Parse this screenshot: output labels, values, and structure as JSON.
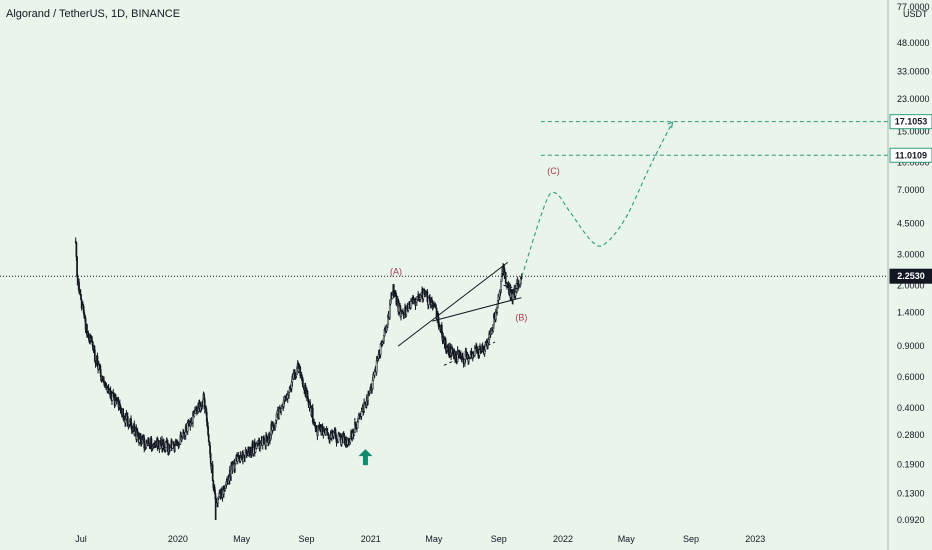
{
  "header": {
    "title": "Algorand / TetherUS, 1D, BINANCE"
  },
  "colors": {
    "background": "#e9f4ea",
    "candle": "#131722",
    "projection": "#2e9c7c",
    "level_line": "#2e9c7c",
    "wave_label": "#a43a4f",
    "arrow": "#138a6f",
    "price_tag": "#131722",
    "level_tag": "#ffffff"
  },
  "chart_data": {
    "type": "candlestick",
    "yscale": "log",
    "ylim": [
      0.092,
      77.0
    ],
    "y_unit": "USDT",
    "x_tick_labels": [
      "Jul",
      "2020",
      "May",
      "Sep",
      "2021",
      "May",
      "Sep",
      "2022",
      "May",
      "Sep",
      "2023"
    ],
    "y_tick_labels": [
      "77.0000",
      "48.0000",
      "33.0000",
      "23.0000",
      "15.0000",
      "10.0000",
      "7.0000",
      "4.5000",
      "3.0000",
      "2.0000",
      "1.4000",
      "0.9000",
      "0.6000",
      "0.4000",
      "0.2800",
      "0.1900",
      "0.1300",
      "0.0920"
    ],
    "y_tick_values": [
      77.0,
      48.0,
      33.0,
      23.0,
      15.0,
      10.0,
      7.0,
      4.5,
      3.0,
      2.0,
      1.4,
      0.9,
      0.6,
      0.4,
      0.28,
      0.19,
      0.13,
      0.092
    ],
    "price_path": {
      "dates": [
        "2019-06-21",
        "2019-06-25",
        "2019-07-08",
        "2019-08-05",
        "2019-09-10",
        "2019-10-28",
        "2019-12-25",
        "2020-02-20",
        "2020-03-13",
        "2020-04-20",
        "2020-06-20",
        "2020-08-17",
        "2020-09-20",
        "2020-11-20",
        "2020-12-28",
        "2021-02-05",
        "2021-02-12",
        "2021-02-28",
        "2021-04-13",
        "2021-05-05",
        "2021-05-23",
        "2021-06-22",
        "2021-08-10",
        "2021-08-24",
        "2021-09-09",
        "2021-09-25",
        "2021-10-15"
      ],
      "values": [
        3.4,
        2.0,
        1.25,
        0.65,
        0.4,
        0.25,
        0.24,
        0.45,
        0.11,
        0.2,
        0.27,
        0.7,
        0.3,
        0.26,
        0.45,
        1.4,
        1.9,
        1.35,
        1.8,
        1.4,
        0.9,
        0.76,
        0.9,
        1.3,
        2.45,
        1.72,
        2.25
      ]
    },
    "last_price": 2.253,
    "price_levels": [
      17.1053,
      11.0109
    ],
    "price_level_labels": [
      "17.1053",
      "11.0109"
    ],
    "last_price_label": "2.2530",
    "wave_labels": [
      {
        "text": "(A)",
        "date": "2021-02-18",
        "price": 2.3
      },
      {
        "text": "(B)",
        "date": "2021-10-14",
        "price": 1.26
      },
      {
        "text": "(C)",
        "date": "2021-12-14",
        "price": 8.6
      }
    ],
    "projection": {
      "dates": [
        "2021-10-15",
        "2021-11-28",
        "2021-12-18",
        "2022-01-15",
        "2022-02-25",
        "2022-03-22",
        "2022-05-01",
        "2022-06-15",
        "2022-07-28"
      ],
      "values": [
        2.25,
        5.8,
        6.7,
        5.2,
        3.55,
        3.45,
        4.9,
        9.5,
        17.0
      ]
    },
    "channels": [
      {
        "from": {
          "date": "2021-02-22",
          "price": 0.9
        },
        "to": {
          "date": "2021-09-18",
          "price": 2.7
        },
        "style": "solid"
      },
      {
        "from": {
          "date": "2021-04-28",
          "price": 1.25
        },
        "to": {
          "date": "2021-10-14",
          "price": 1.7
        },
        "style": "solid"
      },
      {
        "from": {
          "date": "2021-05-20",
          "price": 0.7
        },
        "to": {
          "date": "2021-08-25",
          "price": 0.95
        },
        "style": "dashed"
      },
      {
        "from": {
          "date": "2021-09-10",
          "price": 2.0
        },
        "to": {
          "date": "2021-10-10",
          "price": 1.9
        },
        "style": "dashed"
      }
    ],
    "arrow": {
      "date": "2020-12-22",
      "price": 0.21,
      "direction": "up"
    },
    "grid": false,
    "legend": "none"
  }
}
